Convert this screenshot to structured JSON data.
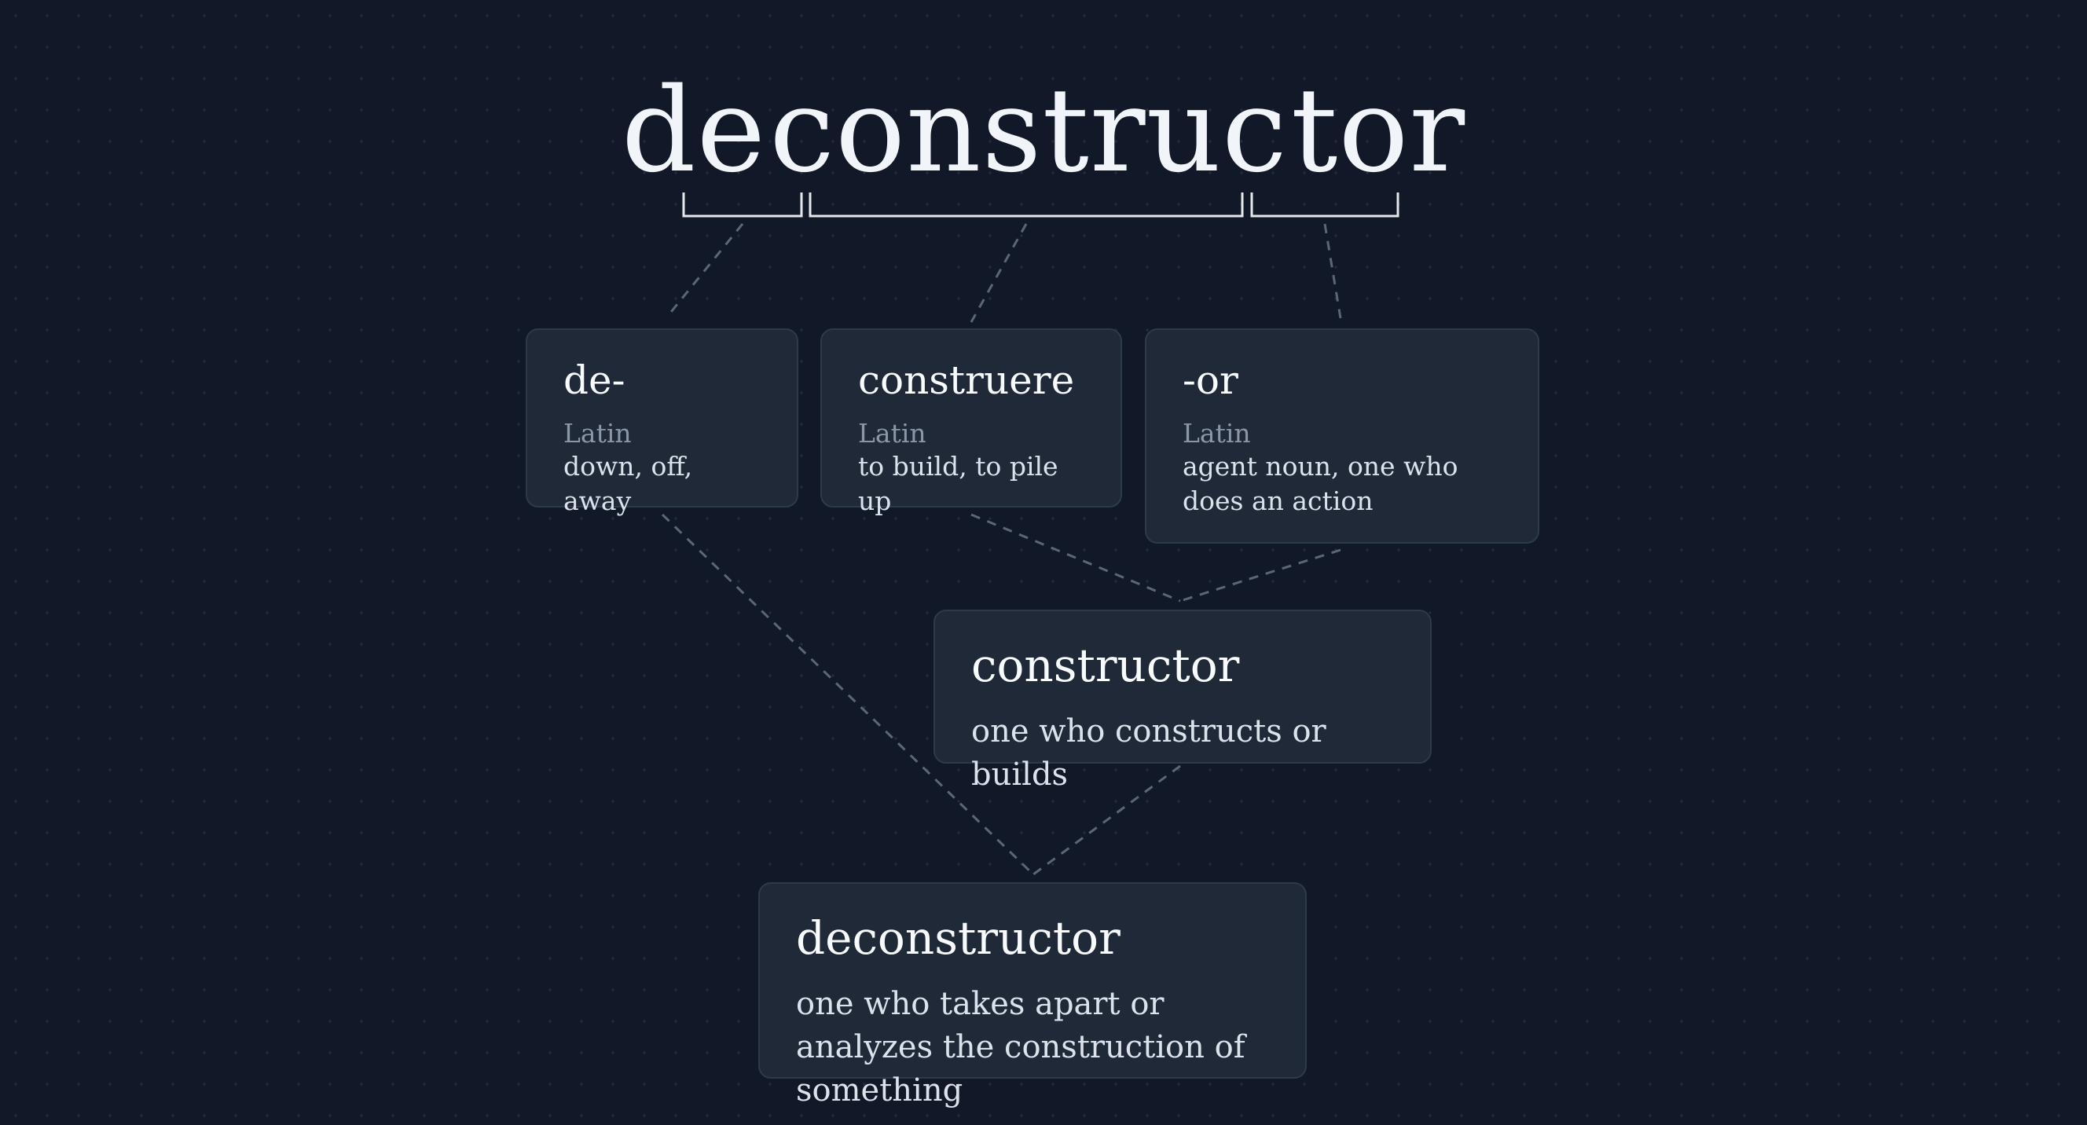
{
  "headword": {
    "segments": [
      "de",
      "construc",
      "tor"
    ]
  },
  "morphemes": [
    {
      "term": "de-",
      "language": "Latin",
      "gloss": "down, off, away"
    },
    {
      "term": "construere",
      "language": "Latin",
      "gloss": "to build, to pile up"
    },
    {
      "term": "-or",
      "language": "Latin",
      "gloss": "agent noun, one who does an action"
    }
  ],
  "intermediate": {
    "term": "constructor",
    "gloss": "one who constructs or builds"
  },
  "result": {
    "term": "deconstructor",
    "gloss": "one who takes apart or analyzes the construction of something"
  },
  "colors": {
    "background": "#111827",
    "card": "#1f2937",
    "card_border": "#2d3a4b",
    "text": "#f1f5f9",
    "muted": "#8b96a8",
    "connector": "#5b6677"
  }
}
